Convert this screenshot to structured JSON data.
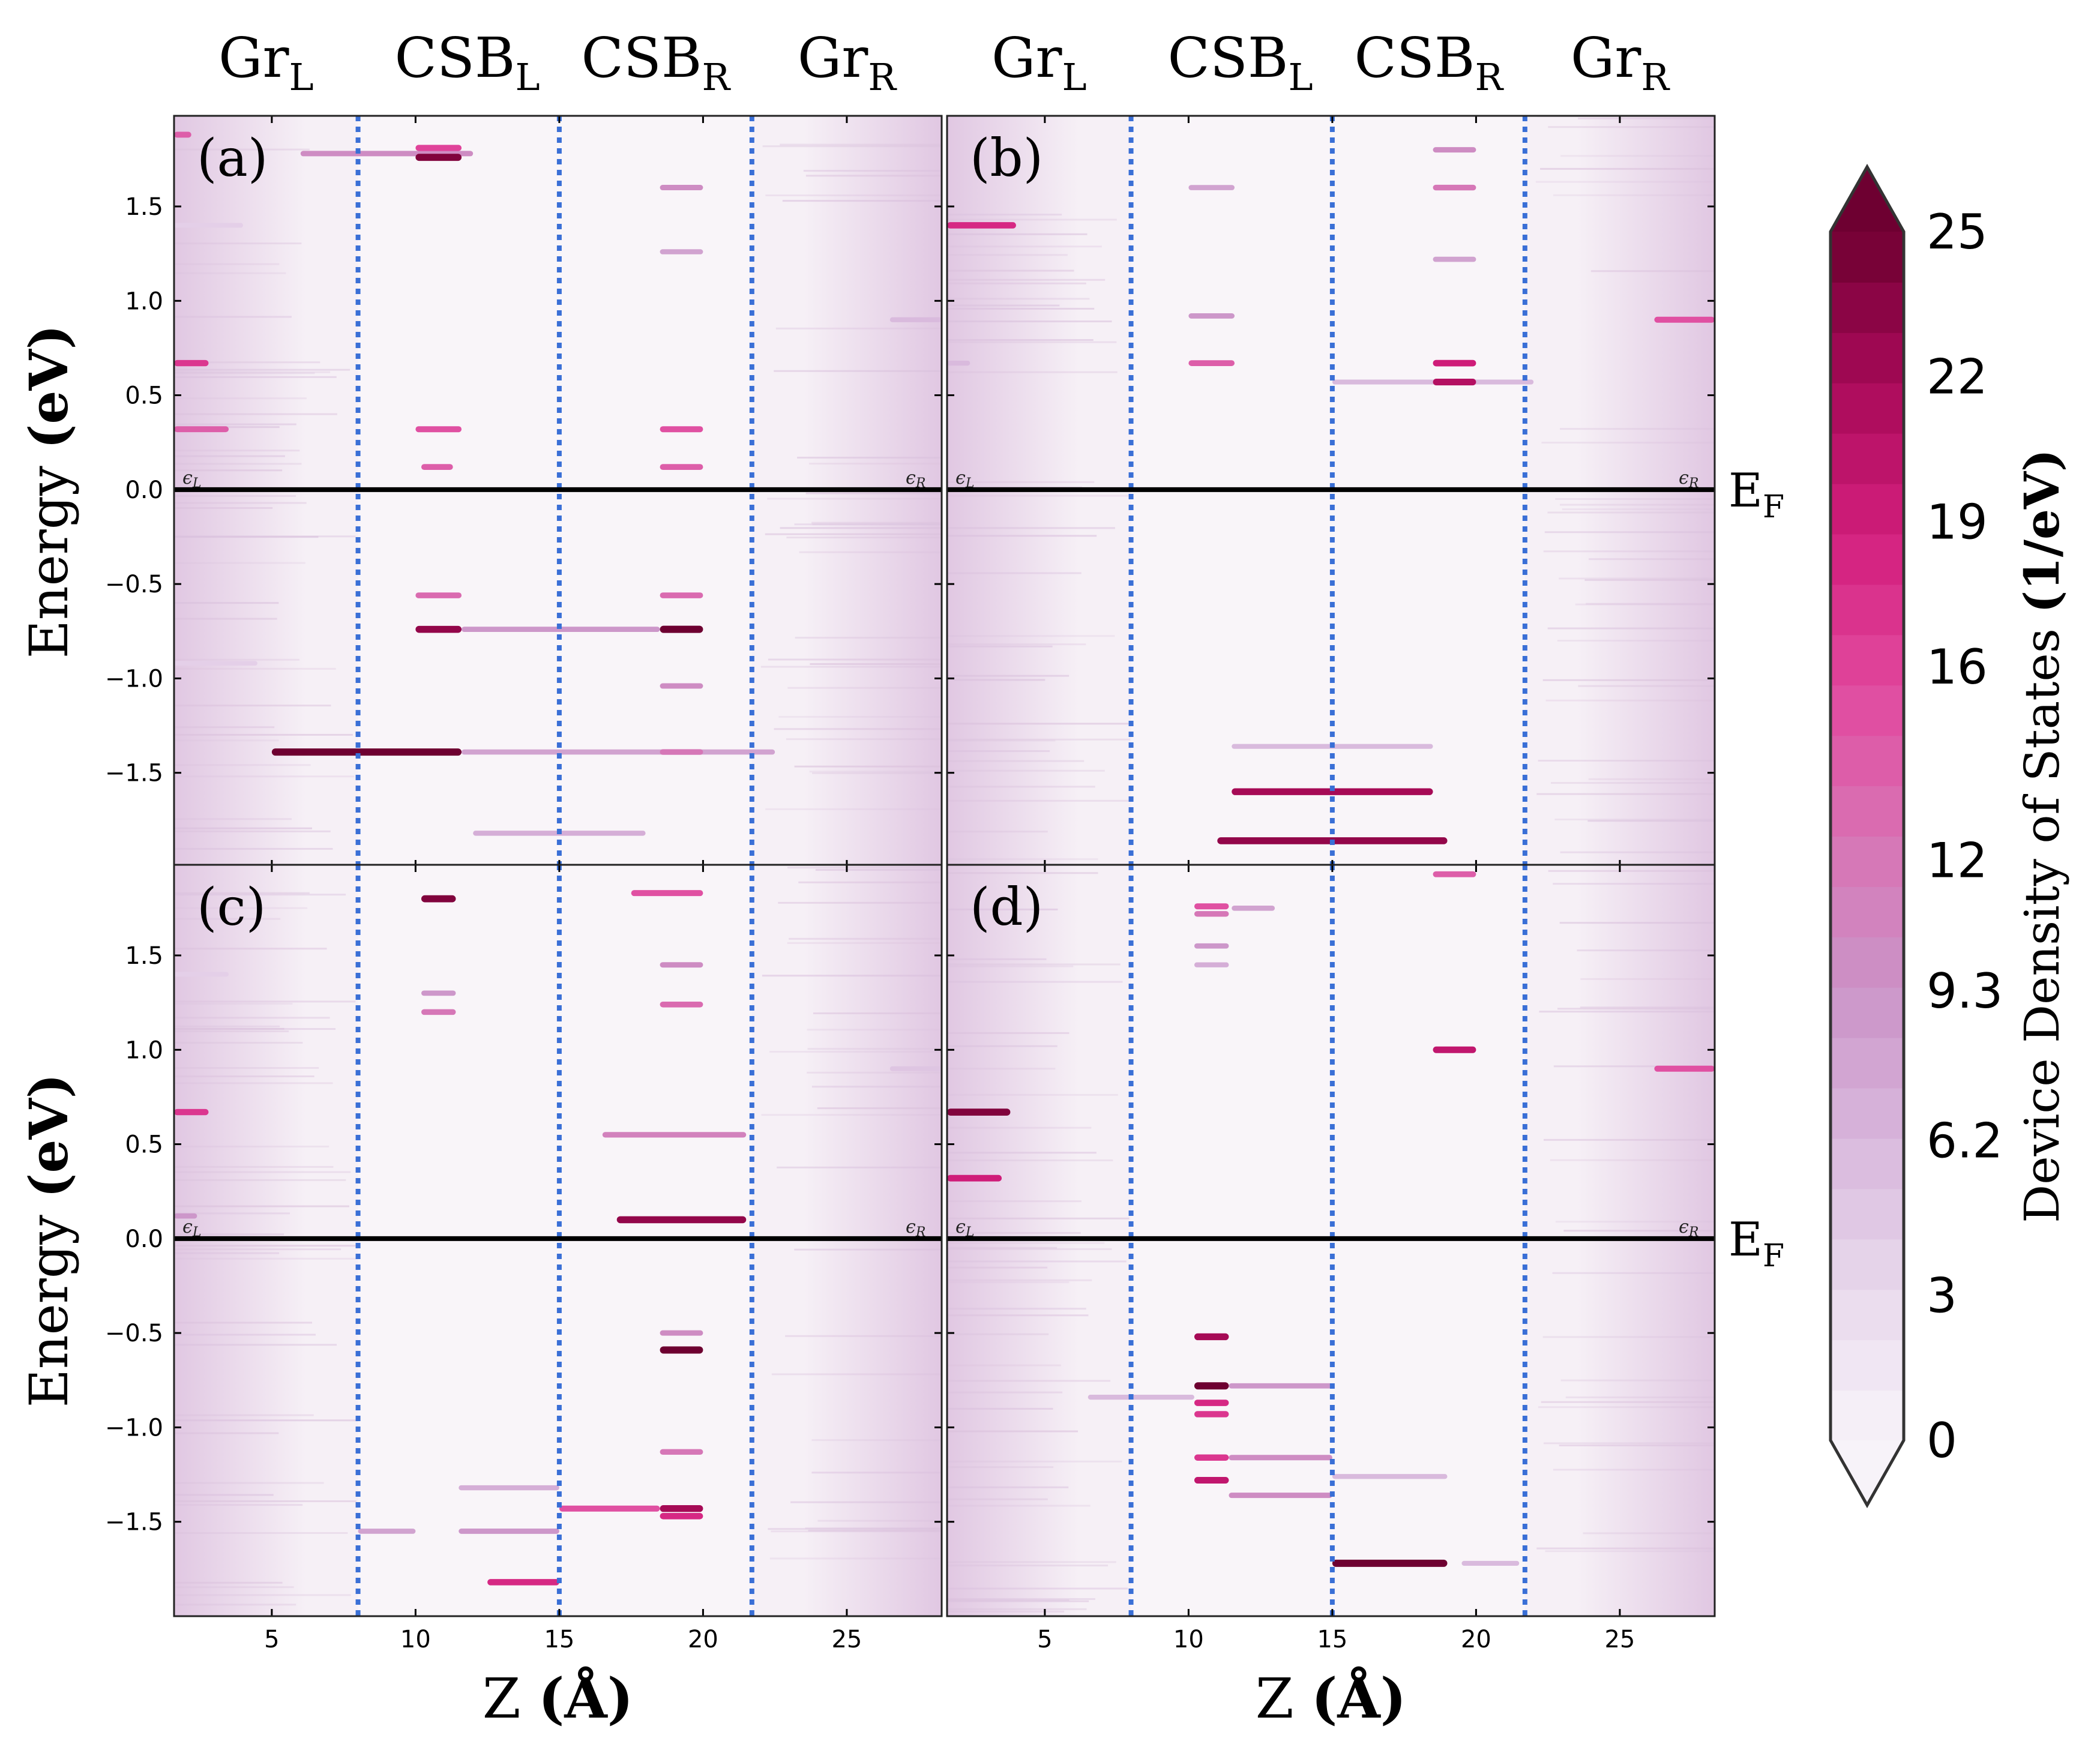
{
  "figure": {
    "column_headers_left": [
      {
        "base": "Gr",
        "sub": "L"
      },
      {
        "base": "CSB",
        "sub": "L"
      },
      {
        "base": "CSB",
        "sub": "R"
      },
      {
        "base": "Gr",
        "sub": "R"
      }
    ],
    "column_headers_right": [
      {
        "base": "Gr",
        "sub": "L"
      },
      {
        "base": "CSB",
        "sub": "L"
      },
      {
        "base": "CSB",
        "sub": "R"
      },
      {
        "base": "Gr",
        "sub": "R"
      }
    ],
    "fermi_label_base": "E",
    "fermi_label_sub": "F",
    "eps_left": "ϵ",
    "eps_left_sub": "L",
    "eps_right": "ϵ",
    "eps_right_sub": "R",
    "ylabel_plain": "Energy",
    "ylabel_bold": "(eV)",
    "xlabel_plain": "Z",
    "xlabel_bold": "(Å)",
    "colorbar_label_plain": "Device Density of States",
    "colorbar_label_bold": "(1/eV)"
  },
  "colors": {
    "background": "#f6f0f6",
    "fermi_line": "#000000",
    "divider": "#3a6fd6",
    "cmap": [
      "#f7f3f9",
      "#e8d9ec",
      "#d8b7dc",
      "#cb93c7",
      "#d872b4",
      "#e2489e",
      "#d21e7c",
      "#a80a58",
      "#6e0031"
    ]
  },
  "chart_data": {
    "type": "heatmap",
    "xlabel": "Z (Å)",
    "ylabel": "Energy (eV)",
    "xlim": [
      1.6,
      28.3
    ],
    "ylim": [
      -2.0,
      1.98
    ],
    "xticks": [
      5,
      10,
      15,
      20,
      25
    ],
    "yticks": [
      -1.5,
      -1.0,
      -0.5,
      0.0,
      0.5,
      1.0,
      1.5
    ],
    "ytick_labels": [
      "−1.5",
      "−1.0",
      "−0.5",
      "0.0",
      "0.5",
      "1.0",
      "1.5"
    ],
    "fermi_energy": 0.0,
    "region_dividers_z": [
      8.0,
      15.0,
      21.7
    ],
    "regions": [
      "GrL",
      "CSBL",
      "CSBR",
      "GrR"
    ],
    "colorbar": {
      "min": 0,
      "max": 25,
      "ticks": [
        0,
        3,
        6.2,
        9.3,
        12,
        16,
        19,
        22,
        25
      ],
      "tick_labels": [
        "0",
        "3",
        "6.2",
        "9.3",
        "12",
        "16",
        "19",
        "22",
        "25"
      ],
      "extend": "both"
    },
    "panels": [
      {
        "label": "(a)",
        "features": [
          {
            "z0": 1.6,
            "z1": 2.2,
            "e": 1.88,
            "v": 14
          },
          {
            "z0": 1.6,
            "z1": 2.8,
            "e": 0.67,
            "v": 17
          },
          {
            "z0": 1.6,
            "z1": 3.5,
            "e": 0.32,
            "v": 14
          },
          {
            "z0": 1.6,
            "z1": 4.0,
            "e": 1.4,
            "v": 4
          },
          {
            "z0": 1.6,
            "z1": 4.5,
            "e": -0.92,
            "v": 4
          },
          {
            "z0": 6.0,
            "z1": 12.0,
            "e": 1.78,
            "v": 10
          },
          {
            "z0": 10.0,
            "z1": 11.6,
            "e": 1.76,
            "v": 24
          },
          {
            "z0": 10.0,
            "z1": 11.6,
            "e": 1.81,
            "v": 16
          },
          {
            "z0": 10.0,
            "z1": 11.6,
            "e": 0.32,
            "v": 15
          },
          {
            "z0": 10.2,
            "z1": 11.3,
            "e": 0.12,
            "v": 14
          },
          {
            "z0": 10.0,
            "z1": 11.6,
            "e": -0.56,
            "v": 13
          },
          {
            "z0": 10.0,
            "z1": 11.6,
            "e": -0.74,
            "v": 23
          },
          {
            "z0": 11.6,
            "z1": 18.5,
            "e": -0.74,
            "v": 9
          },
          {
            "z0": 5.0,
            "z1": 11.6,
            "e": -1.39,
            "v": 25
          },
          {
            "z0": 11.6,
            "z1": 22.5,
            "e": -1.39,
            "v": 8
          },
          {
            "z0": 12.0,
            "z1": 18.0,
            "e": -1.82,
            "v": 7
          },
          {
            "z0": 18.5,
            "z1": 20.0,
            "e": 0.32,
            "v": 15
          },
          {
            "z0": 18.5,
            "z1": 20.0,
            "e": 0.12,
            "v": 14
          },
          {
            "z0": 18.5,
            "z1": 20.0,
            "e": 1.6,
            "v": 10
          },
          {
            "z0": 18.5,
            "z1": 20.0,
            "e": 1.26,
            "v": 8
          },
          {
            "z0": 18.5,
            "z1": 20.0,
            "e": -0.56,
            "v": 13
          },
          {
            "z0": 18.5,
            "z1": 20.0,
            "e": -0.74,
            "v": 25
          },
          {
            "z0": 18.5,
            "z1": 20.0,
            "e": -1.04,
            "v": 10
          },
          {
            "z0": 18.5,
            "z1": 20.0,
            "e": -1.39,
            "v": 12
          },
          {
            "z0": 26.5,
            "z1": 28.3,
            "e": 0.9,
            "v": 6
          }
        ]
      },
      {
        "label": "(b)",
        "features": [
          {
            "z0": 1.6,
            "z1": 4.0,
            "e": 1.4,
            "v": 18
          },
          {
            "z0": 1.6,
            "z1": 2.4,
            "e": 0.67,
            "v": 6
          },
          {
            "z0": 10.0,
            "z1": 11.6,
            "e": 1.6,
            "v": 8
          },
          {
            "z0": 10.0,
            "z1": 11.6,
            "e": 0.92,
            "v": 9
          },
          {
            "z0": 10.0,
            "z1": 11.6,
            "e": 0.67,
            "v": 14
          },
          {
            "z0": 15.0,
            "z1": 22.0,
            "e": 0.57,
            "v": 6
          },
          {
            "z0": 18.5,
            "z1": 20.0,
            "e": 1.8,
            "v": 10
          },
          {
            "z0": 18.5,
            "z1": 20.0,
            "e": 1.6,
            "v": 12
          },
          {
            "z0": 18.5,
            "z1": 20.0,
            "e": 1.22,
            "v": 8
          },
          {
            "z0": 18.5,
            "z1": 20.0,
            "e": 0.67,
            "v": 19
          },
          {
            "z0": 18.5,
            "z1": 20.0,
            "e": 0.57,
            "v": 21
          },
          {
            "z0": 26.2,
            "z1": 28.3,
            "e": 0.9,
            "v": 15
          },
          {
            "z0": 11.5,
            "z1": 18.5,
            "e": -1.36,
            "v": 6
          },
          {
            "z0": 11.5,
            "z1": 18.5,
            "e": -1.6,
            "v": 22
          },
          {
            "z0": 11.0,
            "z1": 19.0,
            "e": -1.86,
            "v": 23
          }
        ]
      },
      {
        "label": "(c)",
        "features": [
          {
            "z0": 1.6,
            "z1": 2.8,
            "e": 0.67,
            "v": 17
          },
          {
            "z0": 1.6,
            "z1": 2.4,
            "e": 0.12,
            "v": 9
          },
          {
            "z0": 1.6,
            "z1": 3.5,
            "e": 1.4,
            "v": 4
          },
          {
            "z0": 10.2,
            "z1": 11.4,
            "e": 1.8,
            "v": 24
          },
          {
            "z0": 10.2,
            "z1": 11.4,
            "e": 1.3,
            "v": 9
          },
          {
            "z0": 10.2,
            "z1": 11.4,
            "e": 1.2,
            "v": 12
          },
          {
            "z0": 17.5,
            "z1": 20.0,
            "e": 1.83,
            "v": 15
          },
          {
            "z0": 18.5,
            "z1": 20.0,
            "e": 1.45,
            "v": 10
          },
          {
            "z0": 18.5,
            "z1": 20.0,
            "e": 1.24,
            "v": 13
          },
          {
            "z0": 16.5,
            "z1": 21.5,
            "e": 0.55,
            "v": 11
          },
          {
            "z0": 17.0,
            "z1": 21.5,
            "e": 0.1,
            "v": 23
          },
          {
            "z0": 18.5,
            "z1": 20.0,
            "e": -0.59,
            "v": 25
          },
          {
            "z0": 18.5,
            "z1": 20.0,
            "e": -0.5,
            "v": 10
          },
          {
            "z0": 18.5,
            "z1": 20.0,
            "e": -1.13,
            "v": 12
          },
          {
            "z0": 18.5,
            "z1": 20.0,
            "e": -1.43,
            "v": 22
          },
          {
            "z0": 18.5,
            "z1": 20.0,
            "e": -1.47,
            "v": 18
          },
          {
            "z0": 15.0,
            "z1": 18.5,
            "e": -1.43,
            "v": 15
          },
          {
            "z0": 11.5,
            "z1": 15.0,
            "e": -1.32,
            "v": 7
          },
          {
            "z0": 11.5,
            "z1": 15.0,
            "e": -1.55,
            "v": 9
          },
          {
            "z0": 12.5,
            "z1": 15.0,
            "e": -1.82,
            "v": 18
          },
          {
            "z0": 8.0,
            "z1": 10.0,
            "e": -1.55,
            "v": 8
          },
          {
            "z0": 26.5,
            "z1": 28.3,
            "e": 0.9,
            "v": 5
          }
        ]
      },
      {
        "label": "(d)",
        "features": [
          {
            "z0": 1.6,
            "z1": 3.8,
            "e": 0.67,
            "v": 24
          },
          {
            "z0": 1.6,
            "z1": 3.5,
            "e": 0.32,
            "v": 19
          },
          {
            "z0": 10.2,
            "z1": 11.4,
            "e": 1.76,
            "v": 15
          },
          {
            "z0": 10.2,
            "z1": 11.4,
            "e": 1.72,
            "v": 12
          },
          {
            "z0": 10.2,
            "z1": 11.4,
            "e": 1.55,
            "v": 9
          },
          {
            "z0": 10.2,
            "z1": 11.4,
            "e": 1.45,
            "v": 7
          },
          {
            "z0": 11.5,
            "z1": 13.0,
            "e": 1.75,
            "v": 8
          },
          {
            "z0": 18.5,
            "z1": 20.0,
            "e": 1.93,
            "v": 14
          },
          {
            "z0": 18.5,
            "z1": 20.0,
            "e": 1.0,
            "v": 20
          },
          {
            "z0": 26.2,
            "z1": 28.3,
            "e": 0.9,
            "v": 15
          },
          {
            "z0": 10.2,
            "z1": 11.4,
            "e": -0.52,
            "v": 22
          },
          {
            "z0": 10.2,
            "z1": 11.4,
            "e": -0.78,
            "v": 25
          },
          {
            "z0": 10.2,
            "z1": 11.4,
            "e": -0.87,
            "v": 18
          },
          {
            "z0": 10.2,
            "z1": 11.4,
            "e": -0.93,
            "v": 17
          },
          {
            "z0": 10.2,
            "z1": 11.4,
            "e": -1.16,
            "v": 17
          },
          {
            "z0": 10.2,
            "z1": 11.4,
            "e": -1.28,
            "v": 20
          },
          {
            "z0": 6.5,
            "z1": 10.2,
            "e": -0.84,
            "v": 6
          },
          {
            "z0": 11.4,
            "z1": 15.0,
            "e": -0.78,
            "v": 9
          },
          {
            "z0": 11.4,
            "z1": 15.0,
            "e": -1.16,
            "v": 10
          },
          {
            "z0": 11.4,
            "z1": 15.0,
            "e": -1.36,
            "v": 10
          },
          {
            "z0": 15.0,
            "z1": 19.0,
            "e": -1.26,
            "v": 6
          },
          {
            "z0": 15.0,
            "z1": 19.0,
            "e": -1.72,
            "v": 25
          },
          {
            "z0": 19.5,
            "z1": 21.5,
            "e": -1.72,
            "v": 6
          }
        ]
      }
    ]
  }
}
